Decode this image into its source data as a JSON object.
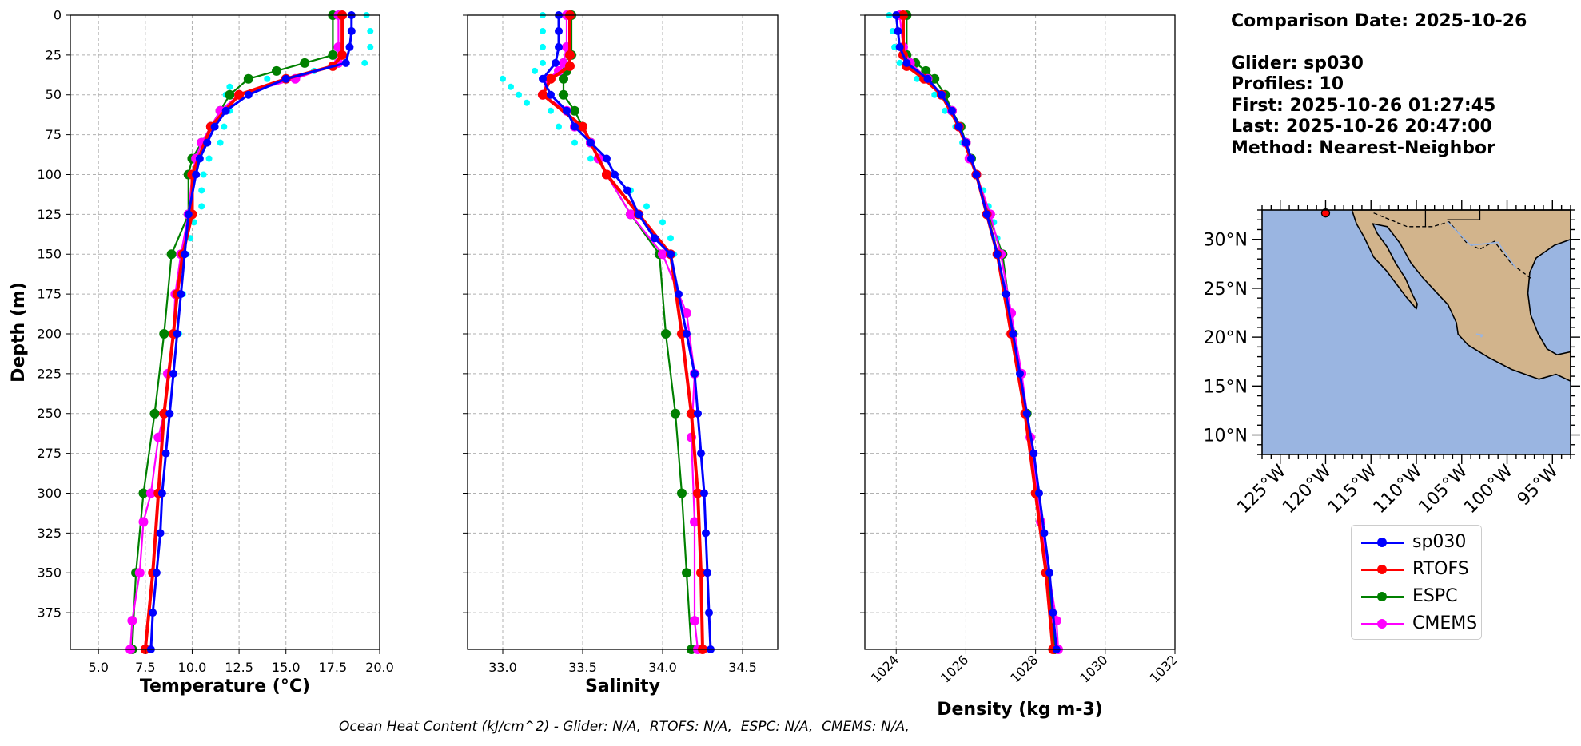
{
  "info": {
    "comparison_date": "Comparison Date: 2025-10-26",
    "glider": "Glider: sp030",
    "profiles": "Profiles: 10",
    "first": "First: 2025-10-26 01:27:45",
    "last": "Last: 2025-10-26 20:47:00",
    "method": "Method: Nearest-Neighbor"
  },
  "footer": "Ocean Heat Content (kJ/cm^2) - Glider: N/A,  RTOFS: N/A,  ESPC: N/A,  CMEMS: N/A,",
  "colors": {
    "sp030": "#0000ff",
    "RTOFS": "#ff0000",
    "ESPC": "#008000",
    "CMEMS": "#ff00ff",
    "glider_raw": "#00ffff",
    "land": "#d2b48c",
    "ocean": "#9ab5e1"
  },
  "legend": [
    "sp030",
    "RTOFS",
    "ESPC",
    "CMEMS"
  ],
  "chart_data": [
    {
      "type": "line",
      "xlabel": "Temperature (°C)",
      "ylabel": "Depth (m)",
      "xlim": [
        3.5,
        20
      ],
      "ylim": [
        398,
        0
      ],
      "xticks": [
        "5.0",
        "7.5",
        "10.0",
        "12.5",
        "15.0",
        "17.5",
        "20.0"
      ],
      "yticks": [
        "0",
        "25",
        "50",
        "75",
        "100",
        "125",
        "150",
        "175",
        "200",
        "225",
        "250",
        "275",
        "300",
        "325",
        "350",
        "375"
      ],
      "grid": true,
      "series": [
        {
          "name": "sp030",
          "depth": [
            0,
            10,
            20,
            30,
            40,
            50,
            60,
            70,
            80,
            90,
            100,
            125,
            150,
            175,
            200,
            225,
            250,
            275,
            300,
            325,
            350,
            375,
            398
          ],
          "values": [
            18.5,
            18.5,
            18.4,
            18.2,
            15.0,
            13.0,
            11.8,
            11.2,
            10.8,
            10.4,
            10.2,
            9.8,
            9.6,
            9.4,
            9.2,
            9.0,
            8.8,
            8.6,
            8.4,
            8.3,
            8.1,
            7.9,
            7.8
          ]
        },
        {
          "name": "RTOFS",
          "depth": [
            0,
            25,
            32,
            40,
            50,
            70,
            100,
            125,
            150,
            175,
            200,
            250,
            300,
            350,
            398
          ],
          "values": [
            18.0,
            18.0,
            17.5,
            15.0,
            12.5,
            11.0,
            10.0,
            10.0,
            9.5,
            9.2,
            9.0,
            8.5,
            8.2,
            7.9,
            7.5
          ]
        },
        {
          "name": "ESPC",
          "depth": [
            0,
            25,
            30,
            35,
            40,
            50,
            60,
            70,
            80,
            90,
            100,
            125,
            150,
            200,
            250,
            300,
            350,
            398
          ],
          "values": [
            17.5,
            17.5,
            16.0,
            14.5,
            13.0,
            12.0,
            11.5,
            11.0,
            10.5,
            10.0,
            9.8,
            9.8,
            8.9,
            8.5,
            8.0,
            7.4,
            7.0,
            6.8
          ]
        },
        {
          "name": "CMEMS",
          "depth": [
            0,
            20,
            30,
            40,
            50,
            60,
            70,
            80,
            90,
            100,
            125,
            150,
            175,
            200,
            225,
            250,
            265,
            300,
            318,
            350,
            380,
            398
          ],
          "values": [
            17.8,
            17.8,
            17.8,
            15.5,
            12.5,
            11.5,
            11.0,
            10.5,
            10.2,
            10.0,
            9.8,
            9.4,
            9.1,
            9.0,
            8.7,
            8.5,
            8.2,
            7.8,
            7.4,
            7.2,
            6.8,
            6.7
          ]
        },
        {
          "name": "glider_raw",
          "depth": [
            0,
            10,
            20,
            30,
            35,
            40,
            45,
            50,
            60,
            70,
            80,
            90,
            100,
            110,
            120,
            130,
            140,
            150,
            175,
            200
          ],
          "values": [
            19.3,
            19.5,
            19.5,
            19.2,
            16.5,
            14.0,
            12.0,
            11.8,
            12.0,
            11.7,
            11.5,
            10.9,
            10.6,
            10.5,
            10.5,
            10.1,
            9.9,
            9.7,
            9.5,
            9.3
          ]
        }
      ]
    },
    {
      "type": "line",
      "xlabel": "Salinity",
      "ylim": [
        398,
        0
      ],
      "xlim": [
        32.78,
        34.72
      ],
      "xticks": [
        "33.0",
        "33.5",
        "34.0",
        "34.5"
      ],
      "grid": true,
      "series": [
        {
          "name": "sp030",
          "depth": [
            0,
            10,
            20,
            30,
            40,
            50,
            60,
            70,
            80,
            90,
            100,
            110,
            125,
            140,
            150,
            175,
            200,
            225,
            250,
            275,
            300,
            325,
            350,
            375,
            398
          ],
          "values": [
            33.35,
            33.35,
            33.35,
            33.33,
            33.25,
            33.3,
            33.4,
            33.45,
            33.55,
            33.65,
            33.7,
            33.78,
            33.85,
            33.95,
            34.05,
            34.1,
            34.15,
            34.2,
            34.22,
            34.24,
            34.26,
            34.27,
            34.28,
            34.29,
            34.3
          ]
        },
        {
          "name": "RTOFS",
          "depth": [
            0,
            25,
            32,
            40,
            50,
            70,
            100,
            125,
            150,
            200,
            250,
            300,
            350,
            398
          ],
          "values": [
            33.42,
            33.42,
            33.42,
            33.3,
            33.25,
            33.5,
            33.65,
            33.85,
            34.05,
            34.12,
            34.18,
            34.22,
            34.24,
            34.25
          ]
        },
        {
          "name": "ESPC",
          "depth": [
            0,
            25,
            30,
            35,
            40,
            50,
            60,
            70,
            80,
            90,
            100,
            125,
            150,
            200,
            250,
            300,
            350,
            398
          ],
          "values": [
            33.43,
            33.43,
            33.38,
            33.4,
            33.38,
            33.38,
            33.45,
            33.5,
            33.55,
            33.6,
            33.65,
            33.8,
            33.98,
            34.02,
            34.08,
            34.12,
            34.15,
            34.18
          ]
        },
        {
          "name": "CMEMS",
          "depth": [
            0,
            20,
            30,
            35,
            40,
            50,
            60,
            70,
            80,
            90,
            100,
            125,
            150,
            187,
            225,
            265,
            318,
            380,
            398
          ],
          "values": [
            33.4,
            33.4,
            33.38,
            33.35,
            33.28,
            33.25,
            33.4,
            33.45,
            33.55,
            33.6,
            33.65,
            33.8,
            34.0,
            34.15,
            34.2,
            34.18,
            34.2,
            34.2,
            34.22
          ]
        },
        {
          "name": "glider_raw",
          "depth": [
            0,
            10,
            20,
            30,
            35,
            40,
            45,
            50,
            55,
            60,
            70,
            80,
            90,
            100,
            110,
            120,
            130,
            140,
            150
          ],
          "values": [
            33.25,
            33.25,
            33.25,
            33.25,
            33.2,
            33.0,
            33.05,
            33.1,
            33.15,
            33.3,
            33.35,
            33.45,
            33.55,
            33.7,
            33.8,
            33.9,
            34.0,
            34.05,
            34.07
          ]
        }
      ]
    },
    {
      "type": "line",
      "xlabel": "Density (kg m-3)",
      "ylim": [
        398,
        0
      ],
      "xlim": [
        1023.1,
        1032.0
      ],
      "xticks": [
        "1024",
        "1026",
        "1028",
        "1030",
        "1032"
      ],
      "grid": true,
      "series": [
        {
          "name": "sp030",
          "depth": [
            0,
            10,
            20,
            30,
            40,
            50,
            60,
            70,
            80,
            90,
            100,
            125,
            150,
            175,
            200,
            225,
            250,
            275,
            300,
            325,
            350,
            375,
            398
          ],
          "values": [
            1024.0,
            1024.05,
            1024.1,
            1024.3,
            1024.9,
            1025.3,
            1025.6,
            1025.8,
            1026.0,
            1026.15,
            1026.3,
            1026.6,
            1026.9,
            1027.15,
            1027.35,
            1027.55,
            1027.75,
            1027.95,
            1028.1,
            1028.25,
            1028.4,
            1028.5,
            1028.6
          ]
        },
        {
          "name": "RTOFS",
          "depth": [
            0,
            25,
            32,
            40,
            50,
            70,
            100,
            125,
            150,
            200,
            250,
            300,
            350,
            398
          ],
          "values": [
            1024.2,
            1024.2,
            1024.3,
            1024.8,
            1025.3,
            1025.8,
            1026.3,
            1026.6,
            1026.9,
            1027.3,
            1027.7,
            1028.0,
            1028.3,
            1028.5
          ]
        },
        {
          "name": "ESPC",
          "depth": [
            0,
            25,
            30,
            35,
            40,
            50,
            60,
            70,
            80,
            90,
            100,
            125,
            150,
            200,
            250,
            300,
            350,
            398
          ],
          "values": [
            1024.3,
            1024.3,
            1024.55,
            1024.85,
            1025.1,
            1025.4,
            1025.6,
            1025.85,
            1026.0,
            1026.15,
            1026.3,
            1026.65,
            1027.05,
            1027.35,
            1027.75,
            1028.05,
            1028.35,
            1028.55
          ]
        },
        {
          "name": "CMEMS",
          "depth": [
            0,
            20,
            30,
            40,
            50,
            60,
            70,
            80,
            90,
            100,
            125,
            150,
            187,
            225,
            265,
            318,
            380,
            398
          ],
          "values": [
            1024.1,
            1024.2,
            1024.4,
            1024.9,
            1025.3,
            1025.6,
            1025.8,
            1026.0,
            1026.1,
            1026.3,
            1026.7,
            1027.0,
            1027.3,
            1027.6,
            1027.85,
            1028.15,
            1028.6,
            1028.65
          ]
        },
        {
          "name": "glider_raw",
          "depth": [
            0,
            10,
            20,
            30,
            40,
            50,
            60,
            70,
            80,
            90,
            100,
            110,
            120,
            130,
            140
          ],
          "values": [
            1023.8,
            1023.9,
            1023.95,
            1024.1,
            1024.6,
            1025.1,
            1025.4,
            1025.7,
            1025.9,
            1026.1,
            1026.3,
            1026.5,
            1026.65,
            1026.8,
            1026.9
          ]
        }
      ]
    },
    {
      "type": "map",
      "lon_ticks": [
        "125°W",
        "120°W",
        "115°W",
        "110°W",
        "105°W",
        "100°W",
        "95°W"
      ],
      "lat_ticks": [
        "10°N",
        "15°N",
        "20°N",
        "25°N",
        "30°N"
      ],
      "lon_values": [
        -125,
        -120,
        -115,
        -110,
        -105,
        -100,
        -95
      ],
      "lat_values": [
        10,
        15,
        20,
        25,
        30
      ],
      "extent": [
        -127,
        -93,
        8,
        33
      ],
      "glider_position": [
        -120.0,
        32.7
      ]
    }
  ]
}
